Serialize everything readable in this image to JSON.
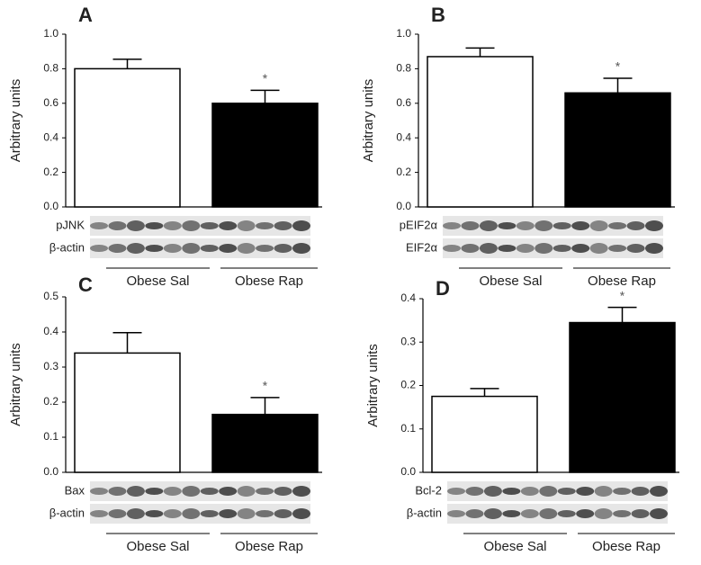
{
  "chart_data": [
    {
      "type": "bar",
      "panel": "A",
      "ylabel": "Arbitrary units",
      "categories": [
        "Obese Sal",
        "Obese Rap"
      ],
      "values": [
        0.8,
        0.6
      ],
      "errors": [
        0.055,
        0.075
      ],
      "colors": [
        "#ffffff",
        "#000000"
      ],
      "ylim": [
        0,
        1
      ],
      "yticks": [
        {
          "value": 0,
          "label": "0.0"
        },
        0.2,
        0.4,
        0.6,
        0.8,
        {
          "value": 1,
          "label": "1.0"
        }
      ],
      "annotation": "*",
      "blot_labels": [
        "pJNK",
        "β-actin"
      ]
    },
    {
      "type": "bar",
      "panel": "B",
      "ylabel": "Arbitrary units",
      "categories": [
        "Obese Sal",
        "Obese Rap"
      ],
      "values": [
        0.87,
        0.66
      ],
      "errors": [
        0.05,
        0.085
      ],
      "colors": [
        "#ffffff",
        "#000000"
      ],
      "ylim": [
        0,
        1
      ],
      "yticks": [
        {
          "value": 0,
          "label": "0.0"
        },
        0.2,
        0.4,
        0.6,
        0.8,
        {
          "value": 1,
          "label": "1.0"
        }
      ],
      "annotation": "*",
      "blot_labels": [
        "pEIF2α",
        "EIF2α"
      ]
    },
    {
      "type": "bar",
      "panel": "C",
      "ylabel": "Arbitrary units",
      "categories": [
        "Obese Sal",
        "Obese Rap"
      ],
      "values": [
        0.34,
        0.165
      ],
      "errors": [
        0.058,
        0.048
      ],
      "colors": [
        "#ffffff",
        "#000000"
      ],
      "ylim": [
        0,
        0.5
      ],
      "yticks": [
        {
          "value": 0,
          "label": "0.0"
        },
        0.1,
        0.2,
        0.3,
        0.4,
        0.5
      ],
      "annotation": "*",
      "blot_labels": [
        "Bax",
        "β-actin"
      ]
    },
    {
      "type": "bar",
      "panel": "D",
      "ylabel": "Arbitrary units",
      "categories": [
        "Obese Sal",
        "Obese Rap"
      ],
      "values": [
        0.175,
        0.345
      ],
      "errors": [
        0.018,
        0.035
      ],
      "colors": [
        "#ffffff",
        "#000000"
      ],
      "ylim": [
        0,
        0.4
      ],
      "yticks": [
        {
          "value": 0,
          "label": "0.0"
        },
        0.1,
        0.2,
        0.3,
        0.4
      ],
      "annotation": "*",
      "blot_labels": [
        "Bcl-2",
        "β-actin"
      ]
    }
  ]
}
